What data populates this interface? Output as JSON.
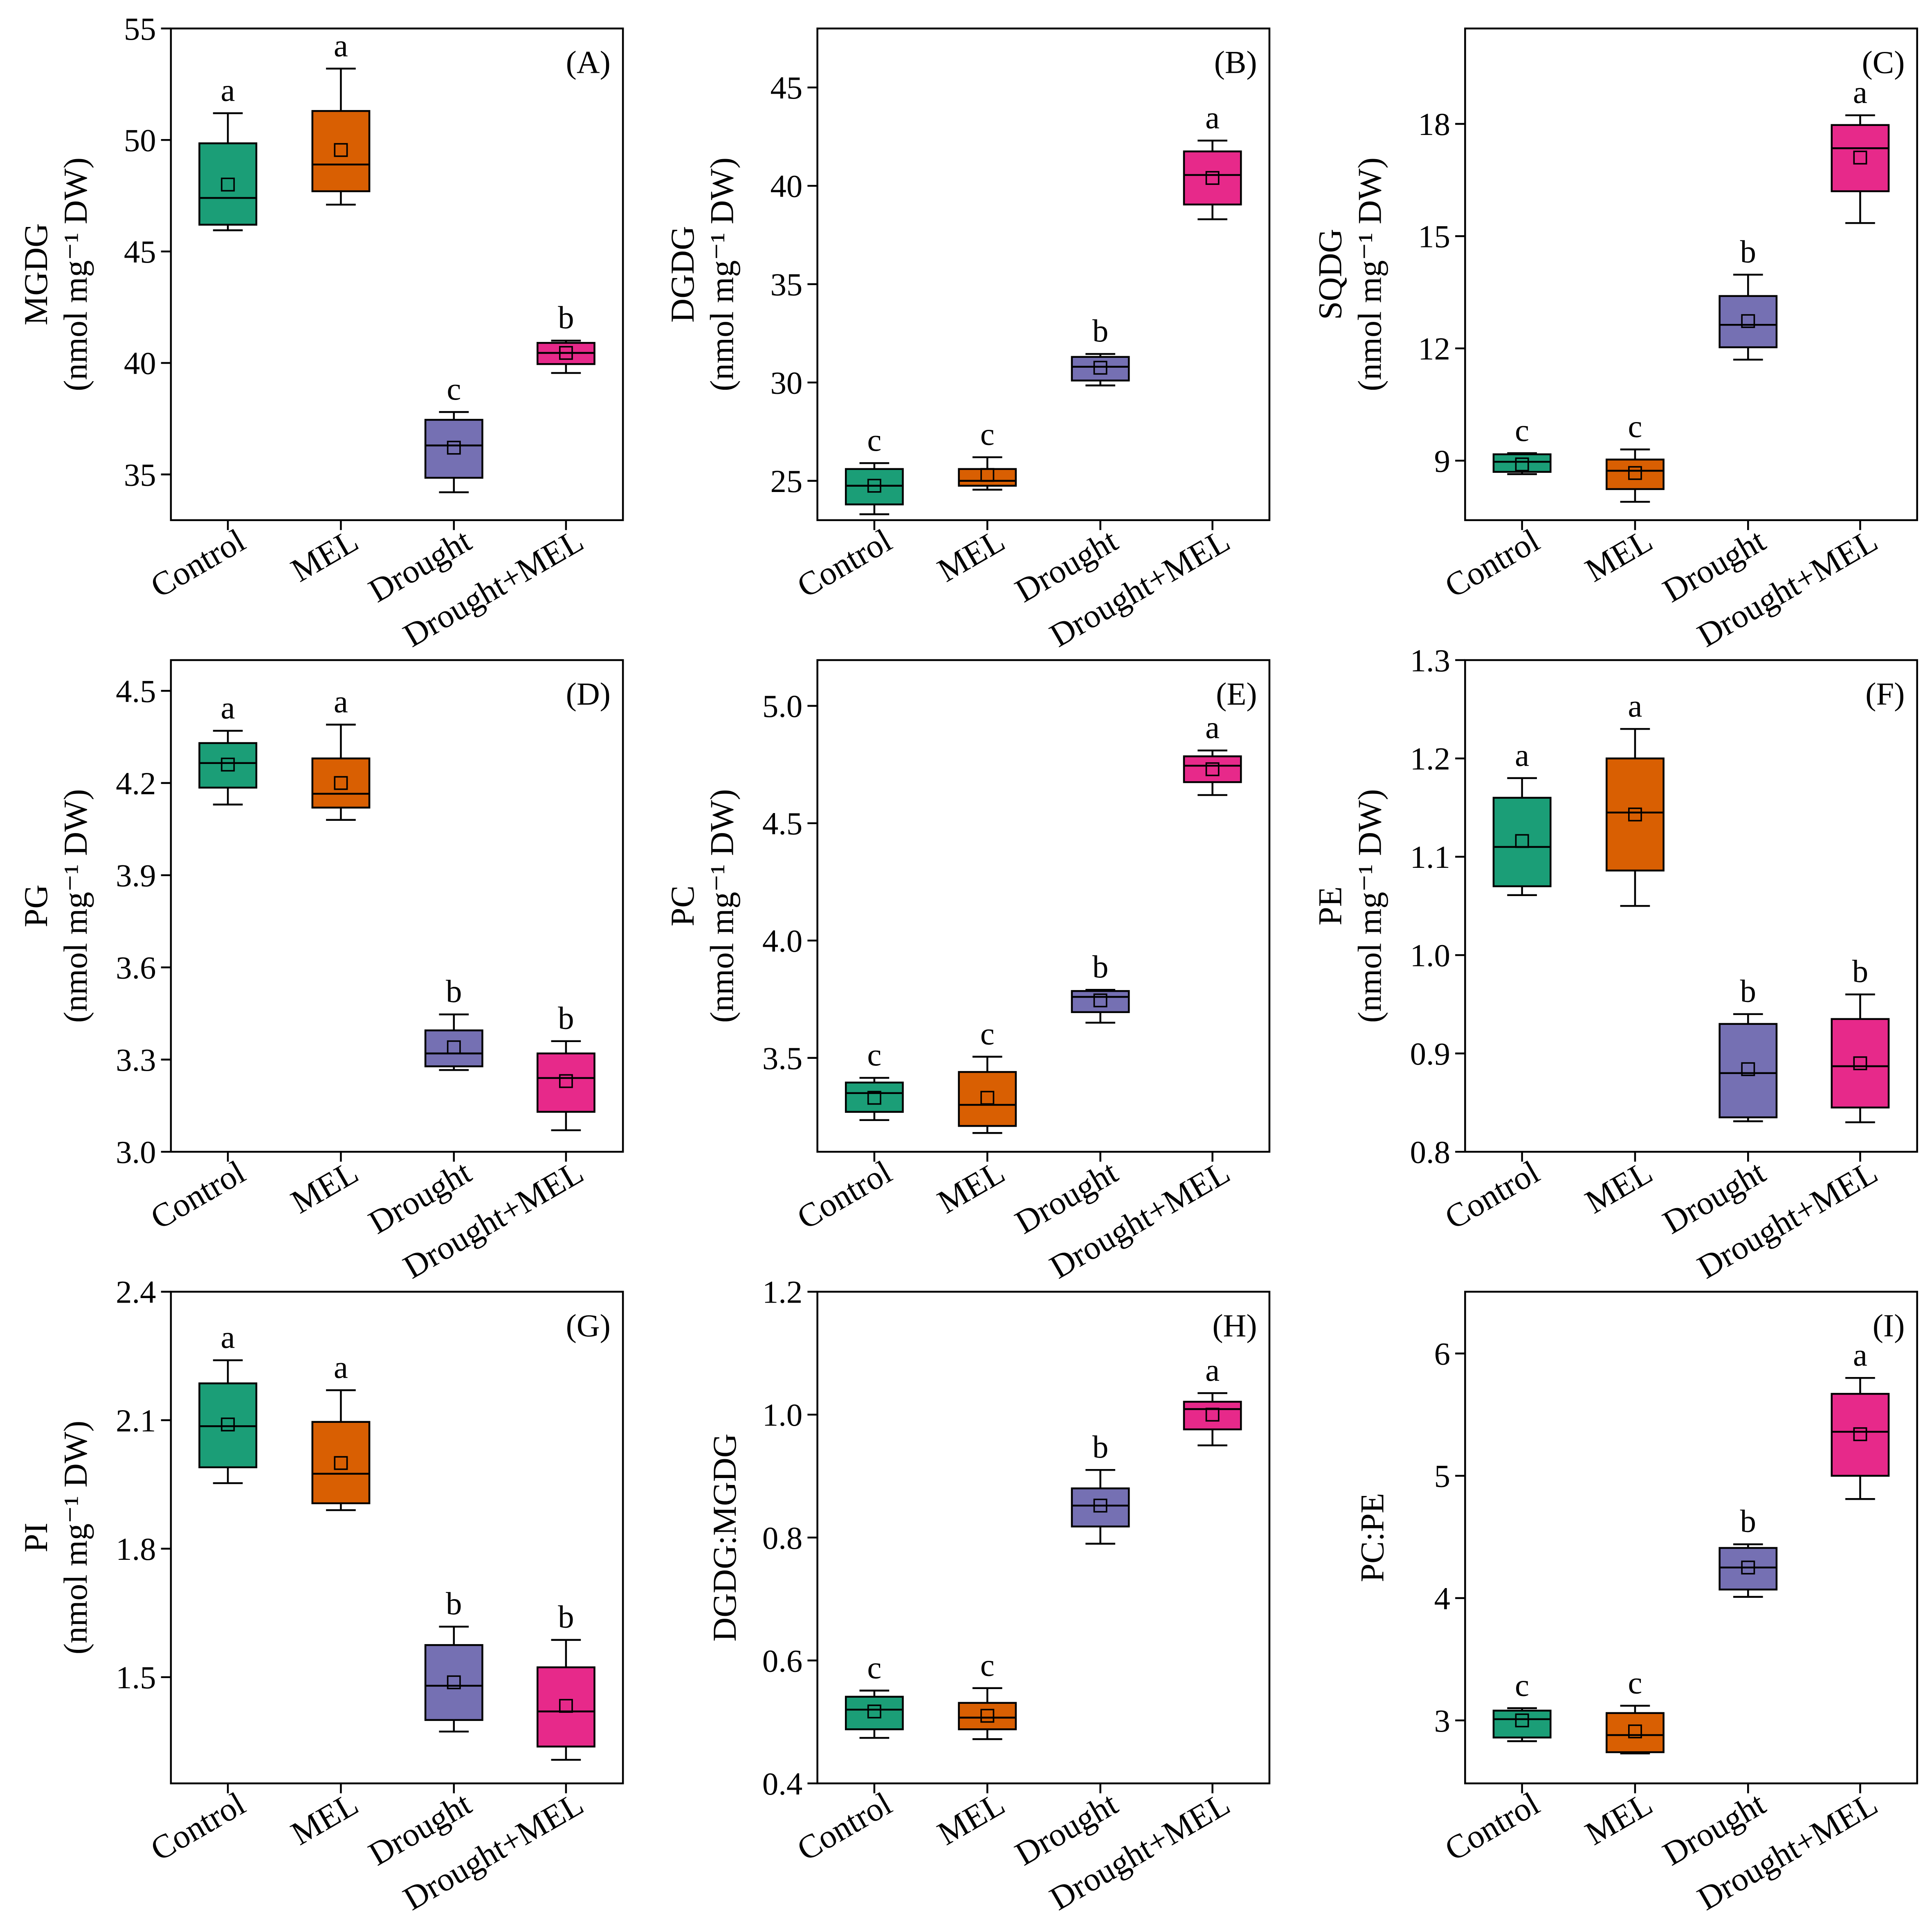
{
  "colors": {
    "Control": "#1b9e77",
    "MEL": "#d95f02",
    "Drought": "#7570b3",
    "Drought+MEL": "#e7298a"
  },
  "chart_data": [
    {
      "type": "box",
      "panel": "(A)",
      "ylabel": "MGDG",
      "yunit": "(nmol mg⁻¹ DW)",
      "ylim": [
        32.95,
        55
      ],
      "yticks": [
        35,
        40,
        45,
        50,
        55
      ],
      "ytick_labels": [
        "35",
        "40",
        "45",
        "50",
        "55"
      ],
      "categories": [
        "Control",
        "MEL",
        "Drought",
        "Drought+MEL"
      ],
      "boxes": [
        {
          "min": 45.95,
          "q1": 46.2,
          "median": 47.4,
          "q3": 49.85,
          "max": 51.2,
          "mean": 48.0,
          "letter": "a"
        },
        {
          "min": 47.1,
          "q1": 47.7,
          "median": 48.9,
          "q3": 51.3,
          "max": 53.2,
          "mean": 49.55,
          "letter": "a"
        },
        {
          "min": 34.2,
          "q1": 34.85,
          "median": 36.3,
          "q3": 37.45,
          "max": 37.8,
          "mean": 36.2,
          "letter": "c"
        },
        {
          "min": 39.55,
          "q1": 39.95,
          "median": 40.45,
          "q3": 40.9,
          "max": 41.0,
          "mean": 40.45,
          "letter": "b"
        }
      ]
    },
    {
      "type": "box",
      "panel": "(B)",
      "ylabel": "DGDG",
      "yunit": "(nmol mg⁻¹ DW)",
      "ylim": [
        23,
        48
      ],
      "yticks": [
        25,
        30,
        35,
        40,
        45
      ],
      "ytick_labels": [
        "25",
        "30",
        "35",
        "40",
        "45"
      ],
      "categories": [
        "Control",
        "MEL",
        "Drought",
        "Drought+MEL"
      ],
      "boxes": [
        {
          "min": 23.3,
          "q1": 23.8,
          "median": 24.75,
          "q3": 25.6,
          "max": 25.9,
          "mean": 24.75,
          "letter": "c"
        },
        {
          "min": 24.55,
          "q1": 24.75,
          "median": 25.0,
          "q3": 25.6,
          "max": 26.2,
          "mean": 25.3,
          "letter": "c"
        },
        {
          "min": 29.85,
          "q1": 30.1,
          "median": 30.8,
          "q3": 31.3,
          "max": 31.45,
          "mean": 30.75,
          "letter": "b"
        },
        {
          "min": 38.3,
          "q1": 39.05,
          "median": 40.55,
          "q3": 41.75,
          "max": 42.3,
          "mean": 40.4,
          "letter": "a"
        }
      ]
    },
    {
      "type": "box",
      "panel": "(C)",
      "ylabel": "SQDG",
      "yunit": "(nmol mg⁻¹ DW)",
      "ylim": [
        7.41,
        20.55
      ],
      "yticks": [
        9,
        12,
        15,
        18
      ],
      "ytick_labels": [
        "9",
        "12",
        "15",
        "18"
      ],
      "categories": [
        "Control",
        "MEL",
        "Drought",
        "Drought+MEL"
      ],
      "boxes": [
        {
          "min": 8.64,
          "q1": 8.7,
          "median": 8.97,
          "q3": 9.17,
          "max": 9.2,
          "mean": 8.9,
          "letter": "c"
        },
        {
          "min": 7.9,
          "q1": 8.24,
          "median": 8.73,
          "q3": 9.03,
          "max": 9.3,
          "mean": 8.67,
          "letter": "c"
        },
        {
          "min": 11.7,
          "q1": 12.03,
          "median": 12.63,
          "q3": 13.4,
          "max": 13.97,
          "mean": 12.73,
          "letter": "b"
        },
        {
          "min": 15.35,
          "q1": 16.2,
          "median": 17.35,
          "q3": 17.97,
          "max": 18.23,
          "mean": 17.1,
          "letter": "a"
        }
      ]
    },
    {
      "type": "box",
      "panel": "(D)",
      "ylabel": "PG",
      "yunit": "(nmol mg⁻¹ DW)",
      "ylim": [
        3.0,
        4.6
      ],
      "yticks": [
        3.0,
        3.3,
        3.6,
        3.9,
        4.2,
        4.5
      ],
      "ytick_labels": [
        "3.0",
        "3.3",
        "3.6",
        "3.9",
        "4.2",
        "4.5"
      ],
      "categories": [
        "Control",
        "MEL",
        "Drought",
        "Drought+MEL"
      ],
      "boxes": [
        {
          "min": 4.13,
          "q1": 4.185,
          "median": 4.265,
          "q3": 4.33,
          "max": 4.37,
          "mean": 4.26,
          "letter": "a"
        },
        {
          "min": 4.08,
          "q1": 4.12,
          "median": 4.165,
          "q3": 4.28,
          "max": 4.39,
          "mean": 4.2,
          "letter": "a"
        },
        {
          "min": 3.266,
          "q1": 3.278,
          "median": 3.32,
          "q3": 3.395,
          "max": 3.447,
          "mean": 3.34,
          "letter": "b"
        },
        {
          "min": 3.07,
          "q1": 3.13,
          "median": 3.24,
          "q3": 3.32,
          "max": 3.36,
          "mean": 3.23,
          "letter": "b"
        }
      ]
    },
    {
      "type": "box",
      "panel": "(E)",
      "ylabel": "PC",
      "yunit": "(nmol mg⁻¹ DW)",
      "ylim": [
        3.1,
        5.195
      ],
      "yticks": [
        3.5,
        4.0,
        4.5,
        5.0
      ],
      "ytick_labels": [
        "3.5",
        "4.0",
        "4.5",
        "5.0"
      ],
      "categories": [
        "Control",
        "MEL",
        "Drought",
        "Drought+MEL"
      ],
      "boxes": [
        {
          "min": 3.235,
          "q1": 3.27,
          "median": 3.35,
          "q3": 3.395,
          "max": 3.415,
          "mean": 3.33,
          "letter": "c"
        },
        {
          "min": 3.18,
          "q1": 3.21,
          "median": 3.3,
          "q3": 3.44,
          "max": 3.505,
          "mean": 3.33,
          "letter": "c"
        },
        {
          "min": 3.65,
          "q1": 3.695,
          "median": 3.76,
          "q3": 3.785,
          "max": 3.79,
          "mean": 3.745,
          "letter": "b"
        },
        {
          "min": 4.62,
          "q1": 4.675,
          "median": 4.745,
          "q3": 4.785,
          "max": 4.81,
          "mean": 4.73,
          "letter": "a"
        }
      ]
    },
    {
      "type": "box",
      "panel": "(F)",
      "ylabel": "PE",
      "yunit": "(nmol mg⁻¹ DW)",
      "ylim": [
        0.8,
        1.3
      ],
      "yticks": [
        0.8,
        0.9,
        1.0,
        1.1,
        1.2,
        1.3
      ],
      "ytick_labels": [
        "0.8",
        "0.9",
        "1.0",
        "1.1",
        "1.2",
        "1.3"
      ],
      "categories": [
        "Control",
        "MEL",
        "Drought",
        "Drought+MEL"
      ],
      "boxes": [
        {
          "min": 1.061,
          "q1": 1.07,
          "median": 1.11,
          "q3": 1.16,
          "max": 1.18,
          "mean": 1.116,
          "letter": "a"
        },
        {
          "min": 1.05,
          "q1": 1.086,
          "median": 1.145,
          "q3": 1.2,
          "max": 1.23,
          "mean": 1.143,
          "letter": "a"
        },
        {
          "min": 0.831,
          "q1": 0.835,
          "median": 0.88,
          "q3": 0.93,
          "max": 0.94,
          "mean": 0.884,
          "letter": "b"
        },
        {
          "min": 0.83,
          "q1": 0.845,
          "median": 0.887,
          "q3": 0.935,
          "max": 0.96,
          "mean": 0.89,
          "letter": "b"
        }
      ]
    },
    {
      "type": "box",
      "panel": "(G)",
      "ylabel": "PI",
      "yunit": "(nmol mg⁻¹ DW)",
      "ylim": [
        1.252,
        2.4
      ],
      "yticks": [
        1.5,
        1.8,
        2.1,
        2.4
      ],
      "ytick_labels": [
        "1.5",
        "1.8",
        "2.1",
        "2.4"
      ],
      "categories": [
        "Control",
        "MEL",
        "Drought",
        "Drought+MEL"
      ],
      "boxes": [
        {
          "min": 1.953,
          "q1": 1.99,
          "median": 2.086,
          "q3": 2.186,
          "max": 2.24,
          "mean": 2.09,
          "letter": "a"
        },
        {
          "min": 1.89,
          "q1": 1.906,
          "median": 1.975,
          "q3": 2.096,
          "max": 2.17,
          "mean": 2.0,
          "letter": "a"
        },
        {
          "min": 1.373,
          "q1": 1.4,
          "median": 1.48,
          "q3": 1.575,
          "max": 1.618,
          "mean": 1.488,
          "letter": "b"
        },
        {
          "min": 1.307,
          "q1": 1.338,
          "median": 1.42,
          "q3": 1.523,
          "max": 1.587,
          "mean": 1.433,
          "letter": "b"
        }
      ]
    },
    {
      "type": "box",
      "panel": "(H)",
      "ylabel": "DGDG:MGDG",
      "yunit": "",
      "ylim": [
        0.4,
        1.2
      ],
      "yticks": [
        0.4,
        0.6,
        0.8,
        1.0,
        1.2
      ],
      "ytick_labels": [
        "0.4",
        "0.6",
        "0.8",
        "1.0",
        "1.2"
      ],
      "categories": [
        "Control",
        "MEL",
        "Drought",
        "Drought+MEL"
      ],
      "boxes": [
        {
          "min": 0.474,
          "q1": 0.488,
          "median": 0.52,
          "q3": 0.541,
          "max": 0.551,
          "mean": 0.517,
          "letter": "c"
        },
        {
          "min": 0.472,
          "q1": 0.488,
          "median": 0.507,
          "q3": 0.531,
          "max": 0.555,
          "mean": 0.51,
          "letter": "c"
        },
        {
          "min": 0.79,
          "q1": 0.818,
          "median": 0.852,
          "q3": 0.88,
          "max": 0.91,
          "mean": 0.852,
          "letter": "b"
        },
        {
          "min": 0.95,
          "q1": 0.976,
          "median": 1.009,
          "q3": 1.021,
          "max": 1.035,
          "mean": 1.0,
          "letter": "a"
        }
      ]
    },
    {
      "type": "box",
      "panel": "(I)",
      "ylabel": "PC:PE",
      "yunit": "",
      "ylim": [
        2.485,
        6.505
      ],
      "yticks": [
        3,
        4,
        5,
        6
      ],
      "ytick_labels": [
        "3",
        "4",
        "5",
        "6"
      ],
      "categories": [
        "Control",
        "MEL",
        "Drought",
        "Drought+MEL"
      ],
      "boxes": [
        {
          "min": 2.83,
          "q1": 2.86,
          "median": 3.01,
          "q3": 3.08,
          "max": 3.1,
          "mean": 3.0,
          "letter": "c"
        },
        {
          "min": 2.73,
          "q1": 2.74,
          "median": 2.88,
          "q3": 3.06,
          "max": 3.12,
          "mean": 2.91,
          "letter": "c"
        },
        {
          "min": 4.01,
          "q1": 4.07,
          "median": 4.25,
          "q3": 4.41,
          "max": 4.44,
          "mean": 4.25,
          "letter": "b"
        },
        {
          "min": 4.81,
          "q1": 5.0,
          "median": 5.36,
          "q3": 5.67,
          "max": 5.8,
          "mean": 5.34,
          "letter": "a"
        }
      ]
    }
  ]
}
